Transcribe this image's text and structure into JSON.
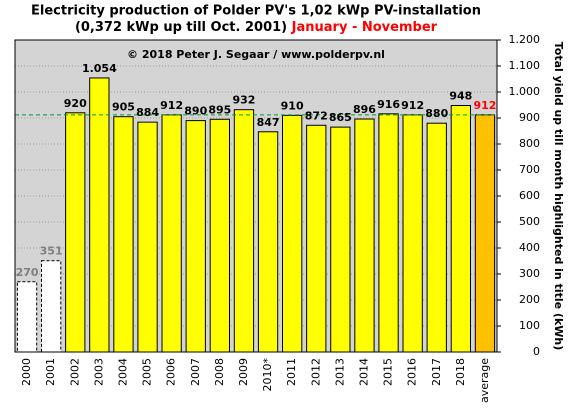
{
  "chart_data": {
    "type": "bar",
    "title": "Electricity production  of Polder  PV's 1,02 kWp PV-installation",
    "subtitle": "(0,372 kWp up till Oct. 2001)",
    "subtitle_highlight": "January - November",
    "annotation": "© 2018 Peter J. Segaar / www.polderpv.nl",
    "y_label": "Total yield up till month highlighted in title (kWh)",
    "categories": [
      "2000",
      "2001",
      "2002",
      "2003",
      "2004",
      "2005",
      "2006",
      "2007",
      "2008",
      "2009",
      "2010*",
      "2011",
      "2012",
      "2013",
      "2014",
      "2015",
      "2016",
      "2017",
      "2018",
      "average"
    ],
    "values": [
      270,
      351,
      920,
      1054,
      905,
      884,
      912,
      890,
      895,
      932,
      847,
      910,
      872,
      865,
      896,
      916,
      912,
      880,
      948,
      912
    ],
    "value_labels": [
      "270",
      "351",
      "920",
      "1.054",
      "905",
      "884",
      "912",
      "890",
      "895",
      "932",
      "847",
      "910",
      "872",
      "865",
      "896",
      "916",
      "912",
      "880",
      "948",
      "912"
    ],
    "bar_colors": [
      "#ffffff",
      "#ffffff",
      "#ffff00",
      "#ffff00",
      "#ffff00",
      "#ffff00",
      "#ffff00",
      "#ffff00",
      "#ffff00",
      "#ffff00",
      "#ffff00",
      "#ffff00",
      "#ffff00",
      "#ffff00",
      "#ffff00",
      "#ffff00",
      "#ffff00",
      "#ffff00",
      "#ffff00",
      "#ffc000"
    ],
    "dashed": [
      true,
      true,
      false,
      false,
      false,
      false,
      false,
      false,
      false,
      false,
      false,
      false,
      false,
      false,
      false,
      false,
      false,
      false,
      false,
      false
    ],
    "label_colors": [
      "#808080",
      "#808080",
      "#000000",
      "#000000",
      "#000000",
      "#000000",
      "#000000",
      "#000000",
      "#000000",
      "#000000",
      "#000000",
      "#000000",
      "#000000",
      "#000000",
      "#000000",
      "#000000",
      "#000000",
      "#000000",
      "#000000",
      "#ff0000"
    ],
    "reference_line": {
      "value": 912,
      "color": "#009933"
    },
    "ylim": [
      0,
      1200
    ],
    "yticks": [
      0,
      100,
      200,
      300,
      400,
      500,
      600,
      700,
      800,
      900,
      {
        "value": 1000,
        "label": "1.000"
      },
      {
        "value": 1100,
        "label": "1.100"
      },
      {
        "value": 1200,
        "label": "1.200"
      }
    ],
    "y_axis_side": "right",
    "grid": true
  }
}
